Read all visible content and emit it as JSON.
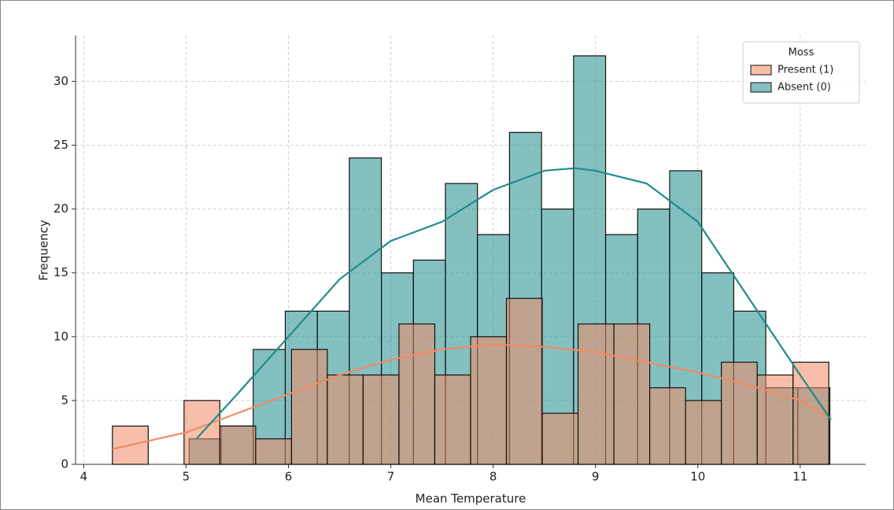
{
  "chart_data": {
    "type": "histogram",
    "xlabel": "Mean Temperature",
    "ylabel": "Frequency",
    "xlim": [
      3.92,
      11.64
    ],
    "ylim": [
      0,
      33.6
    ],
    "xticks": [
      4,
      5,
      6,
      7,
      8,
      9,
      10,
      11
    ],
    "yticks": [
      0,
      5,
      10,
      15,
      20,
      25,
      30
    ],
    "grid": true,
    "legend_title": "Moss",
    "legend_loc": "upper right",
    "series": [
      {
        "name": "Present (1)",
        "color": "#f08a64",
        "bins": [
          4.28,
          4.63,
          4.98,
          5.33,
          5.68,
          6.03,
          6.38,
          6.73,
          7.08,
          7.43,
          7.78,
          8.13,
          8.48,
          8.83,
          9.18,
          9.53,
          9.88,
          10.23,
          10.58,
          10.93,
          11.28
        ],
        "values": [
          3,
          0,
          5,
          3,
          2,
          9,
          7,
          7,
          11,
          7,
          10,
          13,
          4,
          11,
          11,
          6,
          5,
          8,
          7,
          8
        ],
        "kde": {
          "x": [
            4.28,
            5,
            5.5,
            6,
            6.5,
            7,
            7.5,
            8,
            8.5,
            9,
            9.5,
            10,
            10.5,
            11,
            11.3
          ],
          "y": [
            1.2,
            2.5,
            4,
            5.5,
            7,
            8.2,
            9,
            9.4,
            9.2,
            8.8,
            8,
            7.2,
            6.2,
            5,
            3.6
          ]
        }
      },
      {
        "name": "Absent (0)",
        "color": "#1f8c8c",
        "bins": [
          5.03,
          5.343,
          5.656,
          5.969,
          6.282,
          6.595,
          6.908,
          7.221,
          7.534,
          7.847,
          8.16,
          8.473,
          8.786,
          9.099,
          9.412,
          9.725,
          10.038,
          10.351,
          10.664,
          10.977,
          11.29
        ],
        "values": [
          2,
          3,
          9,
          12,
          12,
          24,
          15,
          16,
          22,
          18,
          26,
          20,
          32,
          18,
          20,
          23,
          15,
          12,
          6,
          6
        ],
        "kde": {
          "x": [
            5.1,
            5.5,
            6,
            6.5,
            7,
            7.5,
            8,
            8.5,
            8.8,
            9,
            9.5,
            10,
            10.5,
            11,
            11.3
          ],
          "y": [
            2,
            5.5,
            10,
            14.5,
            17.5,
            19,
            21.5,
            23,
            23.2,
            23,
            22,
            19,
            13,
            7,
            3.5
          ]
        }
      }
    ]
  }
}
